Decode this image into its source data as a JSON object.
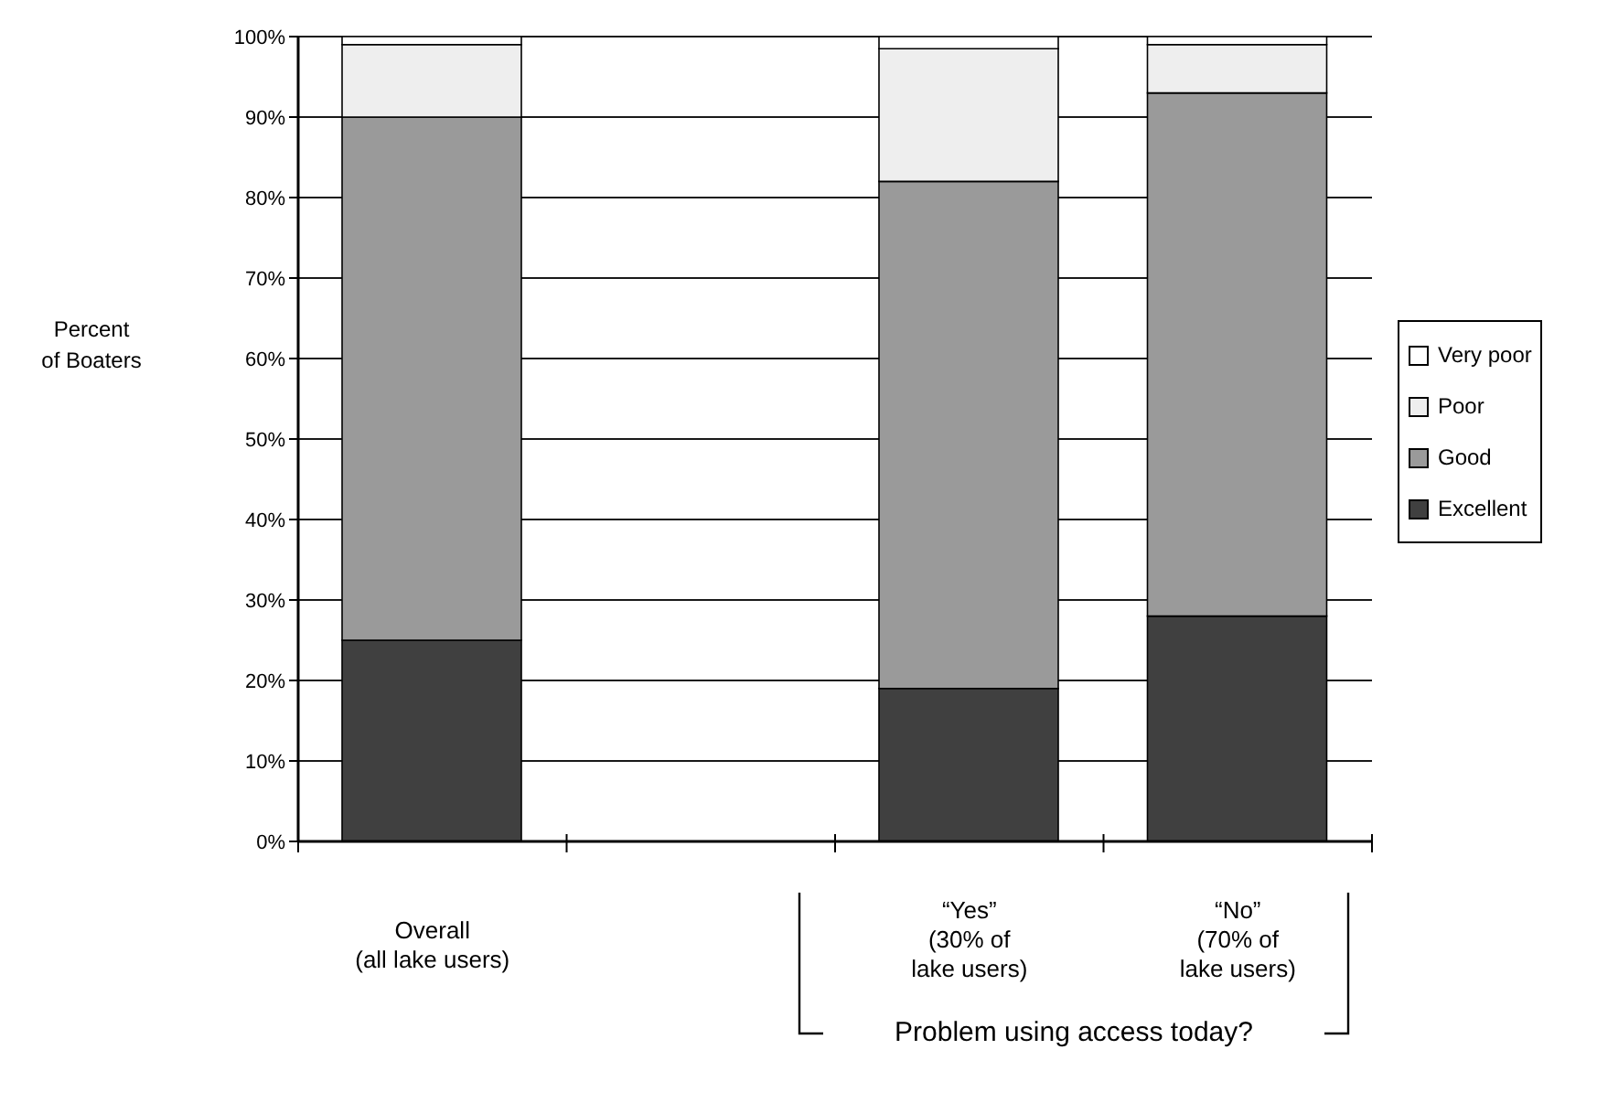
{
  "chart_data": {
    "type": "bar",
    "stacked": true,
    "ylabel": "Percent\nof Boaters",
    "categories": [
      "Overall\n(all lake users)",
      null,
      "“Yes”\n(30% of\nlake users)",
      "“No”\n(70% of\nlake users)"
    ],
    "series": [
      {
        "name": "Excellent",
        "color": "#404040",
        "values": [
          25,
          null,
          19,
          28
        ]
      },
      {
        "name": "Good",
        "color": "#9a9a9a",
        "values": [
          65,
          null,
          63,
          65
        ]
      },
      {
        "name": "Poor",
        "color": "#eeeeee",
        "values": [
          9,
          null,
          16.5,
          6
        ]
      },
      {
        "name": "Very poor",
        "color": "#ffffff",
        "values": [
          1,
          null,
          1.5,
          1
        ]
      }
    ],
    "ylim": [
      0,
      100
    ],
    "yticks": [
      {
        "value": 0,
        "label": "0%"
      },
      {
        "value": 10,
        "label": "10%"
      },
      {
        "value": 20,
        "label": "20%"
      },
      {
        "value": 30,
        "label": "30%"
      },
      {
        "value": 40,
        "label": "40%"
      },
      {
        "value": 50,
        "label": "50%"
      },
      {
        "value": 60,
        "label": "60%"
      },
      {
        "value": 70,
        "label": "70%"
      },
      {
        "value": 80,
        "label": "80%"
      },
      {
        "value": 90,
        "label": "90%"
      },
      {
        "value": 100,
        "label": "100%"
      }
    ],
    "grid": "y",
    "legend": "right",
    "annotations": [
      "Problem using access today?"
    ]
  }
}
